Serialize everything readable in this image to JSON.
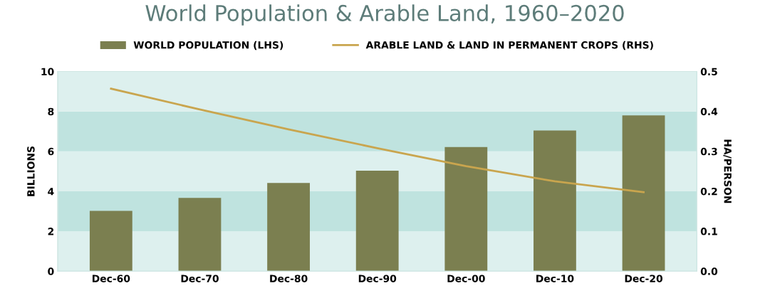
{
  "chart_data": {
    "type": "bar",
    "title": "World Population & Arable Land, 1960–2020",
    "categories": [
      "Dec-60",
      "Dec-70",
      "Dec-80",
      "Dec-90",
      "Dec-00",
      "Dec-10",
      "Dec-20"
    ],
    "series": [
      {
        "name": "WORLD POPULATION (LHS)",
        "color": "#7b7f50",
        "values": [
          3.02,
          3.67,
          4.42,
          5.03,
          6.22,
          7.05,
          7.8
        ]
      },
      {
        "name": "ARABLE LAND & LAND IN PERMANENT CROPS (RHS)",
        "type": "line",
        "axis": "y2",
        "color": "#c9a54e",
        "values": [
          0.457,
          0.405,
          0.355,
          0.308,
          0.263,
          0.225,
          0.198
        ]
      }
    ],
    "ylabel": "BILLIONS",
    "y2label": "HA/PERSON",
    "ylim": [
      0,
      10
    ],
    "yticks": [
      0,
      2,
      4,
      6,
      8,
      10
    ],
    "y2lim": [
      0,
      0.5
    ],
    "y2ticks": [
      {
        "value": 0,
        "label": "0.0"
      },
      0.1,
      0.2,
      0.3,
      0.4,
      0.5
    ],
    "bands": [
      {
        "axis": "y",
        "from": 0,
        "to": 2,
        "color": "#ddf0ee"
      },
      {
        "axis": "y",
        "from": 2,
        "to": 4,
        "color": "#bfe3df"
      },
      {
        "axis": "y",
        "from": 4,
        "to": 6,
        "color": "#ddf0ee"
      },
      {
        "axis": "y",
        "from": 6,
        "to": 8,
        "color": "#bfe3df"
      },
      {
        "axis": "y",
        "from": 8,
        "to": 10,
        "color": "#ddf0ee"
      }
    ],
    "legend": "top",
    "grid": false,
    "marker": "none",
    "line_style": "solid"
  }
}
